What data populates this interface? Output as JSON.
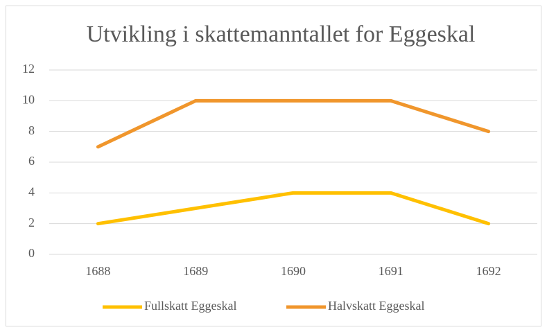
{
  "chart_data": {
    "type": "line",
    "title": "Utvikling i skattemanntallet for Eggeskal",
    "categories": [
      "1688",
      "1689",
      "1690",
      "1691",
      "1692"
    ],
    "series": [
      {
        "name": "Fullskatt Eggeskal",
        "color": "#ffc000",
        "values": [
          2,
          3,
          4,
          4,
          2
        ]
      },
      {
        "name": "Halvskatt Eggeskal",
        "color": "#f0962c",
        "values": [
          7,
          10,
          10,
          10,
          8
        ]
      }
    ],
    "ylim": [
      0,
      12
    ],
    "yticks": [
      0,
      2,
      4,
      6,
      8,
      10,
      12
    ],
    "grid": true,
    "legend": "bottom"
  }
}
